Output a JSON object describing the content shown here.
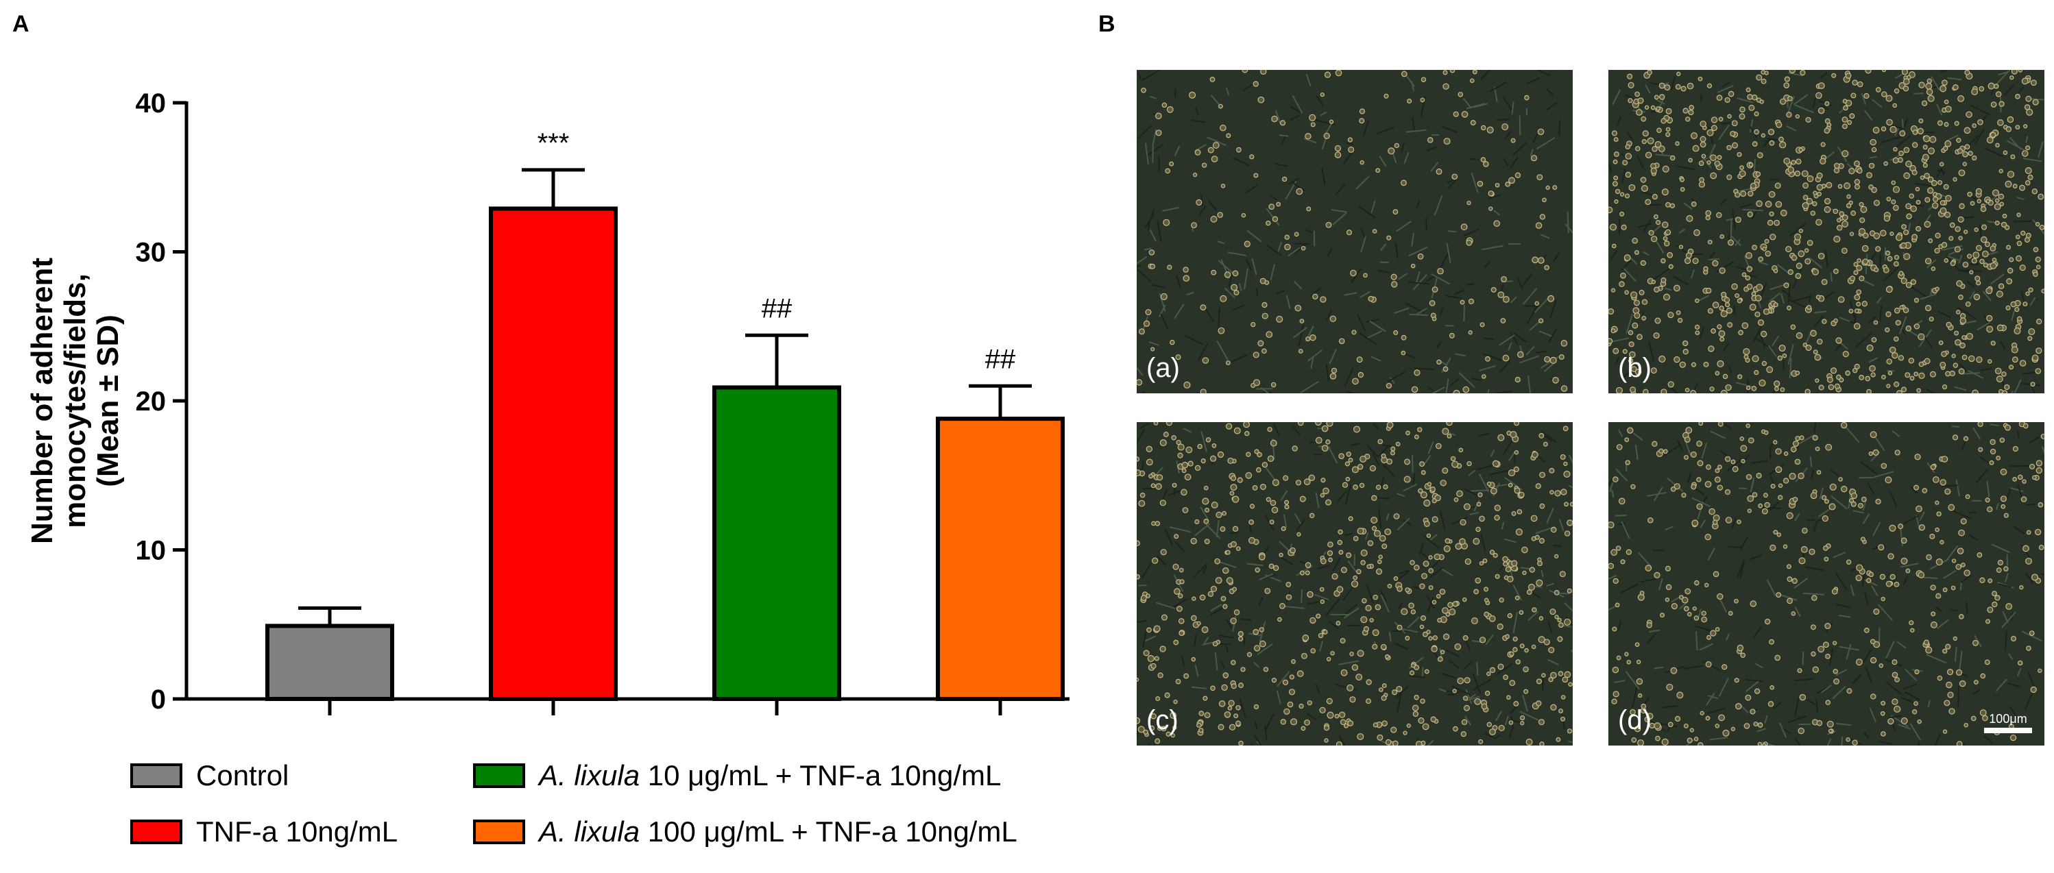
{
  "panel_a_label": "A",
  "panel_b_label": "B",
  "chart_data": {
    "type": "bar",
    "categories": [
      "Control",
      "TNF-a 10ng/mL",
      "A. lixula 10 μg/mL + TNF-a 10ng/mL",
      "A. lixula 100 μg/mL + TNF-a 10ng/mL"
    ],
    "values": [
      4.9,
      32.9,
      20.9,
      18.8
    ],
    "errors": [
      1.2,
      2.6,
      3.5,
      2.2
    ],
    "annotations": [
      "",
      "***",
      "##",
      "##"
    ],
    "colors": [
      "#808080",
      "#ff0000",
      "#008000",
      "#ff6600"
    ],
    "ylabel_lines": [
      "Number of adherent",
      "monocytes/fields,",
      "(Mean ± SD)"
    ],
    "ylim": [
      0,
      40
    ],
    "yticks": [
      0,
      10,
      20,
      30,
      40
    ],
    "grid": false
  },
  "legend": [
    {
      "italic": "",
      "text": "Control",
      "color": "#808080"
    },
    {
      "italic": "",
      "text": "TNF-a 10ng/mL",
      "color": "#ff0000"
    },
    {
      "italic": "A. lixula",
      "text": " 10 μg/mL + TNF-a 10ng/mL",
      "color": "#008000"
    },
    {
      "italic": "A. lixula",
      "text": " 100 μg/mL + TNF-a 10ng/mL",
      "color": "#ff6600"
    }
  ],
  "micrographs": [
    {
      "label": "(a)"
    },
    {
      "label": "(b)"
    },
    {
      "label": "(c)"
    },
    {
      "label": "(d)",
      "scale_bar": "100μm"
    }
  ]
}
